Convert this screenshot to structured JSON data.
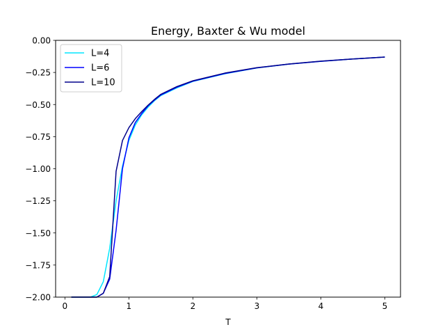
{
  "chart_data": {
    "type": "line",
    "title": "Energy, Baxter & Wu model",
    "xlabel": "T",
    "ylabel": "",
    "xlim": [
      -0.145,
      5.245
    ],
    "ylim": [
      -2.0,
      0.0
    ],
    "xticks": [
      0,
      1,
      2,
      3,
      4,
      5
    ],
    "xtick_labels": [
      "0",
      "1",
      "2",
      "3",
      "4",
      "5"
    ],
    "yticks": [
      0.0,
      -0.25,
      -0.5,
      -0.75,
      -1.0,
      -1.25,
      -1.5,
      -1.75,
      -2.0
    ],
    "ytick_labels": [
      "0.00",
      "−0.25",
      "−0.50",
      "−0.75",
      "−1.00",
      "−1.25",
      "−1.50",
      "−1.75",
      "−2.00"
    ],
    "grid": false,
    "legend_position": "top-left",
    "series": [
      {
        "name": "L=4",
        "color": "#00e5ff",
        "x": [
          0.1,
          0.2,
          0.3,
          0.4,
          0.5,
          0.6,
          0.7,
          0.8,
          0.9,
          1.0,
          1.1,
          1.2,
          1.3,
          1.4,
          1.5,
          1.75,
          2.0,
          2.5,
          3.0,
          3.5,
          4.0,
          4.5,
          5.0
        ],
        "y": [
          -2.0,
          -2.0,
          -2.0,
          -2.0,
          -1.98,
          -1.88,
          -1.62,
          -1.25,
          -0.98,
          -0.78,
          -0.66,
          -0.58,
          -0.52,
          -0.47,
          -0.43,
          -0.37,
          -0.32,
          -0.26,
          -0.215,
          -0.185,
          -0.163,
          -0.145,
          -0.13
        ]
      },
      {
        "name": "L=6",
        "color": "#0000ff",
        "x": [
          0.1,
          0.2,
          0.3,
          0.4,
          0.5,
          0.6,
          0.7,
          0.8,
          0.9,
          1.0,
          1.1,
          1.2,
          1.3,
          1.4,
          1.5,
          1.75,
          2.0,
          2.5,
          3.0,
          3.5,
          4.0,
          4.5,
          5.0
        ],
        "y": [
          -2.0,
          -2.0,
          -2.0,
          -2.0,
          -2.0,
          -1.97,
          -1.86,
          -1.48,
          -1.0,
          -0.76,
          -0.64,
          -0.57,
          -0.51,
          -0.465,
          -0.425,
          -0.365,
          -0.318,
          -0.258,
          -0.214,
          -0.185,
          -0.163,
          -0.145,
          -0.13
        ]
      },
      {
        "name": "L=10",
        "color": "#00008b",
        "x": [
          0.1,
          0.2,
          0.3,
          0.4,
          0.5,
          0.6,
          0.7,
          0.8,
          0.9,
          1.0,
          1.1,
          1.2,
          1.3,
          1.4,
          1.5,
          1.75,
          2.0,
          2.5,
          3.0,
          3.5,
          4.0,
          4.5,
          5.0
        ],
        "y": [
          -2.0,
          -2.0,
          -2.0,
          -2.0,
          -2.0,
          -1.97,
          -1.84,
          -1.02,
          -0.78,
          -0.68,
          -0.61,
          -0.555,
          -0.505,
          -0.46,
          -0.42,
          -0.36,
          -0.315,
          -0.255,
          -0.213,
          -0.184,
          -0.162,
          -0.145,
          -0.13
        ]
      }
    ]
  }
}
